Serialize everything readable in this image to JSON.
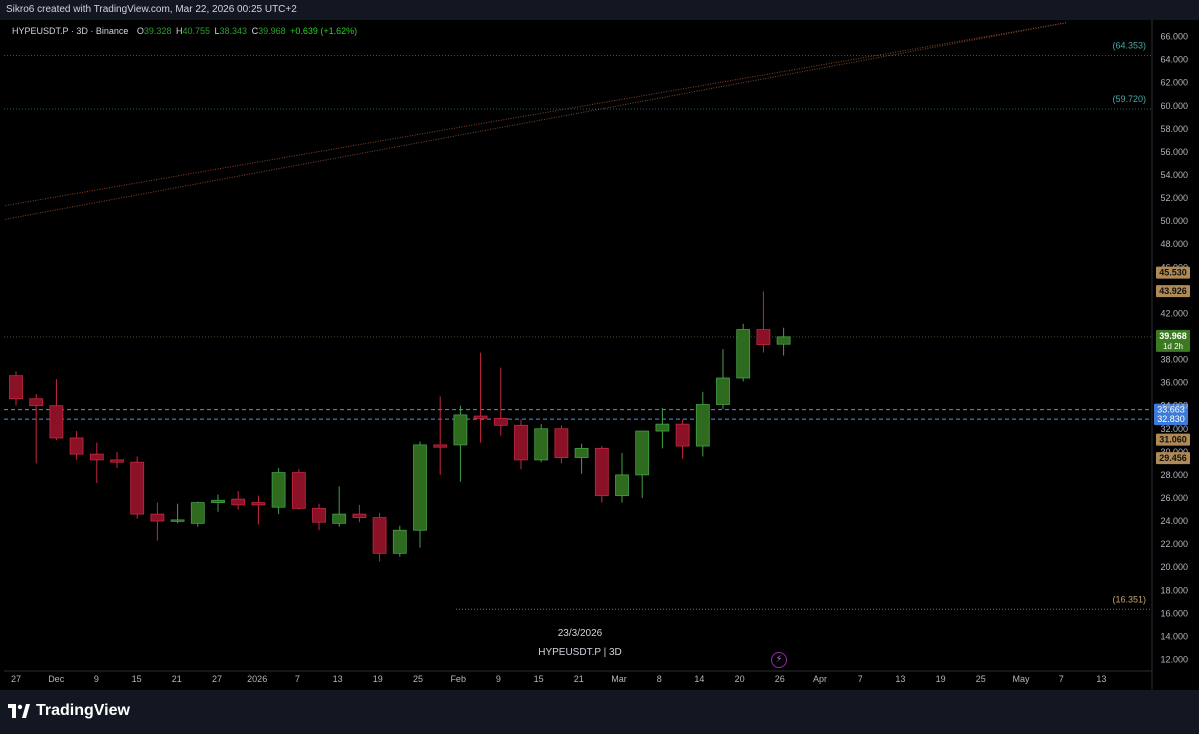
{
  "header": {
    "caption": "Sikro6 created with TradingView.com, Mar 22, 2026 00:25 UTC+2"
  },
  "legend": {
    "symbol": "HYPEUSDT.P · 3D · Binance",
    "open_key": "O",
    "open": "39.328",
    "high_key": "H",
    "high": "40.755",
    "low_key": "L",
    "low": "38.343",
    "close_key": "C",
    "close": "39.968",
    "change": "+0.639 (+1.62%)"
  },
  "watermark": {
    "date": "23/3/2026",
    "symbol": "HYPEUSDT.P | 3D"
  },
  "footer": {
    "brand": "TradingView"
  },
  "colors": {
    "up": "#26a69a",
    "up_body": "#2e6b1f",
    "up_border": "#43a047",
    "down_body": "#8b1126",
    "down_border": "#c62840",
    "support": "#5b8dd9",
    "channel": "#a0522d",
    "level_teal": "#1b5e5e",
    "level_gold": "#8d7a40"
  },
  "chart_data": {
    "type": "candlestick",
    "symbol": "HYPEUSDT.P",
    "interval": "3D",
    "exchange": "Binance",
    "ylim": [
      11,
      67
    ],
    "y_ticks": [
      "12.000",
      "14.000",
      "16.000",
      "18.000",
      "20.000",
      "22.000",
      "24.000",
      "26.000",
      "28.000",
      "30.000",
      "32.000",
      "34.000",
      "36.000",
      "38.000",
      "40.000",
      "42.000",
      "44.000",
      "46.000",
      "48.000",
      "50.000",
      "52.000",
      "54.000",
      "56.000",
      "58.000",
      "60.000",
      "62.000",
      "64.000",
      "66.000"
    ],
    "x_ticks": [
      "27",
      "Dec",
      "9",
      "15",
      "21",
      "27",
      "2026",
      "7",
      "13",
      "19",
      "25",
      "Feb",
      "9",
      "15",
      "21",
      "Mar",
      "8",
      "14",
      "20",
      "26",
      "Apr",
      "7",
      "13",
      "19",
      "25",
      "May",
      "7",
      "13"
    ],
    "candles": [
      {
        "o": 36.6,
        "h": 37.0,
        "l": 34.0,
        "c": 34.6
      },
      {
        "o": 34.6,
        "h": 35.0,
        "l": 29.0,
        "c": 34.0
      },
      {
        "o": 34.0,
        "h": 36.3,
        "l": 31.0,
        "c": 31.2
      },
      {
        "o": 31.2,
        "h": 31.8,
        "l": 29.3,
        "c": 29.8
      },
      {
        "o": 29.8,
        "h": 30.8,
        "l": 27.3,
        "c": 29.3
      },
      {
        "o": 29.3,
        "h": 30.0,
        "l": 28.6,
        "c": 29.1
      },
      {
        "o": 29.1,
        "h": 29.6,
        "l": 24.2,
        "c": 24.6
      },
      {
        "o": 24.6,
        "h": 25.6,
        "l": 22.3,
        "c": 24.0
      },
      {
        "o": 24.0,
        "h": 25.5,
        "l": 23.8,
        "c": 24.1
      },
      {
        "o": 23.8,
        "h": 25.7,
        "l": 23.5,
        "c": 25.6
      },
      {
        "o": 25.6,
        "h": 26.3,
        "l": 24.8,
        "c": 25.8
      },
      {
        "o": 25.9,
        "h": 26.6,
        "l": 25.0,
        "c": 25.4
      },
      {
        "o": 25.6,
        "h": 26.2,
        "l": 23.7,
        "c": 25.4
      },
      {
        "o": 25.2,
        "h": 28.6,
        "l": 24.6,
        "c": 28.2
      },
      {
        "o": 28.2,
        "h": 28.5,
        "l": 25.0,
        "c": 25.1
      },
      {
        "o": 25.1,
        "h": 25.5,
        "l": 23.2,
        "c": 23.9
      },
      {
        "o": 23.8,
        "h": 27.0,
        "l": 23.5,
        "c": 24.6
      },
      {
        "o": 24.6,
        "h": 25.4,
        "l": 23.9,
        "c": 24.3
      },
      {
        "o": 24.3,
        "h": 24.7,
        "l": 20.5,
        "c": 21.2
      },
      {
        "o": 21.2,
        "h": 23.6,
        "l": 20.9,
        "c": 23.2
      },
      {
        "o": 23.2,
        "h": 30.9,
        "l": 21.7,
        "c": 30.6
      },
      {
        "o": 30.6,
        "h": 34.8,
        "l": 28.0,
        "c": 30.4
      },
      {
        "o": 30.6,
        "h": 34.0,
        "l": 27.4,
        "c": 33.2
      },
      {
        "o": 33.1,
        "h": 38.6,
        "l": 30.8,
        "c": 32.9
      },
      {
        "o": 32.9,
        "h": 37.3,
        "l": 31.4,
        "c": 32.3
      },
      {
        "o": 32.3,
        "h": 32.8,
        "l": 28.5,
        "c": 29.3
      },
      {
        "o": 29.3,
        "h": 32.4,
        "l": 29.1,
        "c": 32.0
      },
      {
        "o": 32.0,
        "h": 32.3,
        "l": 29.0,
        "c": 29.5
      },
      {
        "o": 29.5,
        "h": 30.7,
        "l": 28.1,
        "c": 30.3
      },
      {
        "o": 30.3,
        "h": 30.5,
        "l": 25.6,
        "c": 26.2
      },
      {
        "o": 26.2,
        "h": 29.9,
        "l": 25.6,
        "c": 28.0
      },
      {
        "o": 28.0,
        "h": 31.8,
        "l": 26.0,
        "c": 31.8
      },
      {
        "o": 31.8,
        "h": 33.8,
        "l": 30.3,
        "c": 32.4
      },
      {
        "o": 32.4,
        "h": 32.8,
        "l": 29.4,
        "c": 30.5
      },
      {
        "o": 30.5,
        "h": 35.2,
        "l": 29.6,
        "c": 34.1
      },
      {
        "o": 34.1,
        "h": 38.9,
        "l": 33.7,
        "c": 36.4
      },
      {
        "o": 36.4,
        "h": 41.1,
        "l": 36.1,
        "c": 40.6
      },
      {
        "o": 40.6,
        "h": 43.9,
        "l": 38.6,
        "c": 39.3
      },
      {
        "o": 39.328,
        "h": 40.755,
        "l": 38.343,
        "c": 39.968
      }
    ],
    "horizontal_levels": [
      {
        "value": 64.353,
        "label": "(64.353)",
        "style": "teal-dotted"
      },
      {
        "value": 59.72,
        "label": "(59.720)",
        "style": "teal-dotted"
      },
      {
        "value": 33.663,
        "label": "33.663",
        "style": "blue-dashed"
      },
      {
        "value": 32.83,
        "label": "32.830",
        "style": "blue-dashed"
      },
      {
        "value": 16.351,
        "label": "(16.351)",
        "style": "gold-dotted"
      }
    ],
    "price_badges": [
      {
        "value": 45.53,
        "label": "45.530"
      },
      {
        "value": 43.926,
        "label": "43.926"
      },
      {
        "value": 31.06,
        "label": "31.060"
      },
      {
        "value": 29.456,
        "label": "29.456"
      }
    ],
    "current_price": {
      "value": 39.968,
      "label": "39.968",
      "countdown": "1d 2h"
    },
    "channel_lines": [
      {
        "start": {
          "bar": -1,
          "price": 51.2
        },
        "end": {
          "bar": 52,
          "price": 67.2
        }
      },
      {
        "start": {
          "bar": -1,
          "price": 50.0
        },
        "end": {
          "bar": 52,
          "price": 67.2
        }
      }
    ]
  }
}
